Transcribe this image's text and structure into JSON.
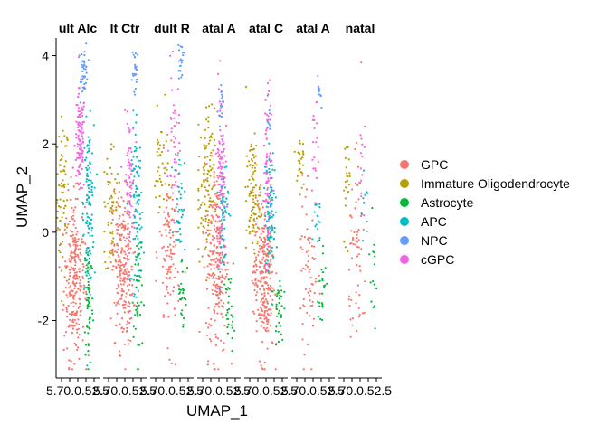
{
  "chart_data": {
    "type": "scatter",
    "xlabel": "UMAP_1",
    "ylabel": "UMAP_2",
    "ylim": [
      -3.3,
      4.4
    ],
    "y_ticks": [
      "-2",
      "0",
      "2",
      "4"
    ],
    "x_tick_text": "5.70.0.52.5",
    "panels": [
      {
        "title": "ult Alc",
        "ntick_labels": 1
      },
      {
        "title": "lt Ctr",
        "ntick_labels": 1
      },
      {
        "title": "dult R",
        "ntick_labels": 1
      },
      {
        "title": "atal A",
        "ntick_labels": 1
      },
      {
        "title": "atal C",
        "ntick_labels": 1
      },
      {
        "title": "atal A",
        "ntick_labels": 1
      },
      {
        "title": "natal",
        "ntick_labels": 1
      }
    ],
    "series": [
      {
        "name": "GPC",
        "color": "#F8766D"
      },
      {
        "name": "Immature Oligodendrocyte",
        "color": "#B79F00"
      },
      {
        "name": "Astrocyte",
        "color": "#00BA38"
      },
      {
        "name": "APC",
        "color": "#00BFC4"
      },
      {
        "name": "NPC",
        "color": "#619CFF"
      },
      {
        "name": "cGPC",
        "color": "#F564E3"
      }
    ],
    "grid": false,
    "legend_position": "right"
  }
}
